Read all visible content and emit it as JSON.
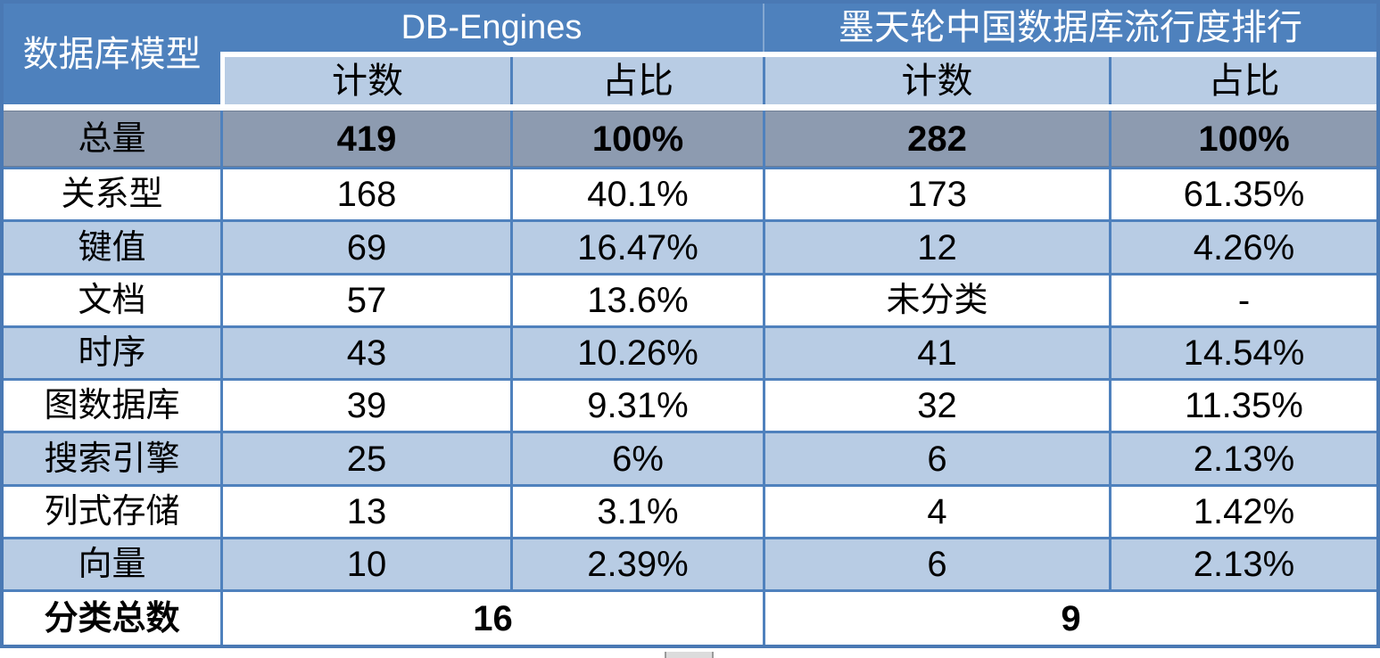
{
  "header": {
    "row_dimension_label": "数据库模型",
    "source_groups": [
      {
        "label": "DB-Engines",
        "columns": [
          "计数",
          "占比"
        ]
      },
      {
        "label": "墨天轮中国数据库流行度排行",
        "columns": [
          "计数",
          "占比"
        ]
      }
    ]
  },
  "table": {
    "body": [
      {
        "label": "总量",
        "values": [
          "419",
          "100%",
          "282",
          "100%"
        ],
        "style": "total"
      },
      {
        "label": "关系型",
        "values": [
          "168",
          "40.1%",
          "173",
          "61.35%"
        ]
      },
      {
        "label": "键值",
        "values": [
          "69",
          "16.47%",
          "12",
          "4.26%"
        ]
      },
      {
        "label": "文档",
        "values": [
          "57",
          "13.6%",
          "未分类",
          "-"
        ]
      },
      {
        "label": "时序",
        "values": [
          "43",
          "10.26%",
          "41",
          "14.54%"
        ]
      },
      {
        "label": "图数据库",
        "values": [
          "39",
          "9.31%",
          "32",
          "11.35%"
        ]
      },
      {
        "label": "搜索引擎",
        "values": [
          "25",
          "6%",
          "6",
          "2.13%"
        ]
      },
      {
        "label": "列式存储",
        "values": [
          "13",
          "3.1%",
          "4",
          "1.42%"
        ]
      },
      {
        "label": "向量",
        "values": [
          "10",
          "2.39%",
          "6",
          "2.13%"
        ]
      },
      {
        "label": "分类总数",
        "values": [
          "16",
          "9"
        ],
        "style": "merged-summary"
      }
    ]
  },
  "chart_data": {
    "type": "table",
    "title": "",
    "column_groups": [
      "数据库模型",
      "DB-Engines",
      "DB-Engines",
      "墨天轮中国数据库流行度排行",
      "墨天轮中国数据库流行度排行"
    ],
    "columns": [
      "数据库模型",
      "计数",
      "占比",
      "计数",
      "占比"
    ],
    "rows": [
      [
        "总量",
        "419",
        "100%",
        "282",
        "100%"
      ],
      [
        "关系型",
        "168",
        "40.1%",
        "173",
        "61.35%"
      ],
      [
        "键值",
        "69",
        "16.47%",
        "12",
        "4.26%"
      ],
      [
        "文档",
        "57",
        "13.6%",
        "未分类",
        "-"
      ],
      [
        "时序",
        "43",
        "10.26%",
        "41",
        "14.54%"
      ],
      [
        "图数据库",
        "39",
        "9.31%",
        "32",
        "11.35%"
      ],
      [
        "搜索引擎",
        "25",
        "6%",
        "6",
        "2.13%"
      ],
      [
        "列式存储",
        "13",
        "3.1%",
        "4",
        "1.42%"
      ],
      [
        "向量",
        "10",
        "2.39%",
        "6",
        "2.13%"
      ],
      [
        "分类总数",
        "16",
        "",
        "9",
        ""
      ]
    ]
  },
  "colors": {
    "header_blue": "#4e81bd",
    "band_blue": "#b8cce4",
    "total_row_gray": "#8d9bb0",
    "grid_line_blue": "#4f81bd"
  }
}
